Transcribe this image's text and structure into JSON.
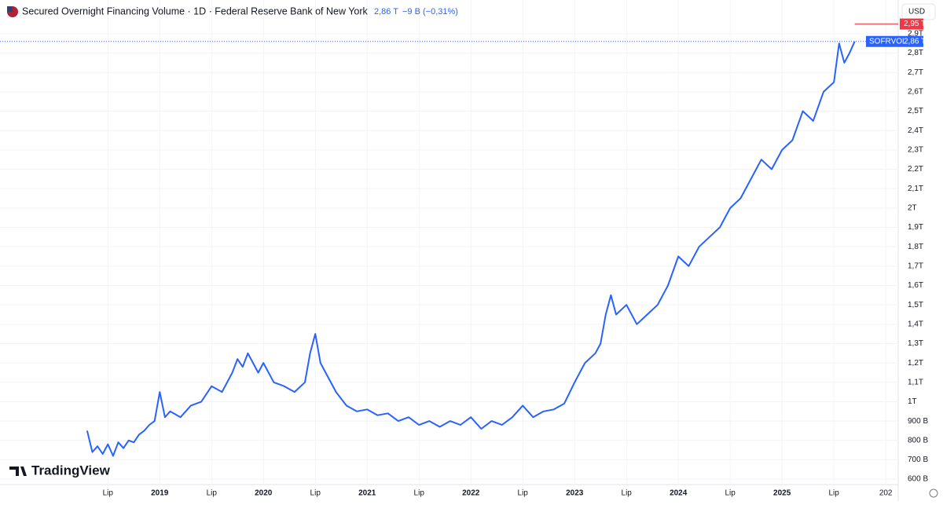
{
  "chart_data": {
    "type": "line",
    "title": "Secured Overnight Financing Volume · 1D · Federal Reserve Bank of New York",
    "last": {
      "value": 2860,
      "label": "2,86 T"
    },
    "change": "−9 B (−0,31%)",
    "high": {
      "value": 2950,
      "label": "2,95 T"
    },
    "symbol": "SOFRVOL",
    "currency": "USD",
    "watermark": "TradingView",
    "grid": true,
    "xlim": [
      2017.46,
      2026.12
    ],
    "ylim": [
      572,
      3074
    ],
    "xticks": [
      {
        "value": 2018.5,
        "label": "Lip"
      },
      2019,
      {
        "value": 2019.5,
        "label": "Lip"
      },
      2020,
      {
        "value": 2020.5,
        "label": "Lip"
      },
      2021,
      {
        "value": 2021.5,
        "label": "Lip"
      },
      2022,
      {
        "value": 2022.5,
        "label": "Lip"
      },
      2023,
      {
        "value": 2023.5,
        "label": "Lip"
      },
      2024,
      {
        "value": 2024.5,
        "label": "Lip"
      },
      2025,
      {
        "value": 2025.5,
        "label": "Lip"
      },
      {
        "value": 2026,
        "label": "202"
      }
    ],
    "yticks": [
      {
        "value": 600,
        "label": "600 B"
      },
      {
        "value": 700,
        "label": "700 B"
      },
      {
        "value": 800,
        "label": "800 B"
      },
      {
        "value": 900,
        "label": "900 B"
      },
      {
        "value": 1000,
        "label": "1T"
      },
      {
        "value": 1100,
        "label": "1,1T"
      },
      {
        "value": 1200,
        "label": "1,2T"
      },
      {
        "value": 1300,
        "label": "1,3T"
      },
      {
        "value": 1400,
        "label": "1,4T"
      },
      {
        "value": 1500,
        "label": "1,5T"
      },
      {
        "value": 1600,
        "label": "1,6T"
      },
      {
        "value": 1700,
        "label": "1,7T"
      },
      {
        "value": 1800,
        "label": "1,8T"
      },
      {
        "value": 1900,
        "label": "1,9T"
      },
      {
        "value": 2000,
        "label": "2T"
      },
      {
        "value": 2100,
        "label": "2,1T"
      },
      {
        "value": 2200,
        "label": "2,2T"
      },
      {
        "value": 2300,
        "label": "2,3T"
      },
      {
        "value": 2400,
        "label": "2,4T"
      },
      {
        "value": 2500,
        "label": "2,5T"
      },
      {
        "value": 2600,
        "label": "2,6T"
      },
      {
        "value": 2700,
        "label": "2,7T"
      },
      {
        "value": 2800,
        "label": "2,8T"
      },
      {
        "value": 2900,
        "label": "2,9T"
      }
    ],
    "series": [
      {
        "name": "SOFRVOL",
        "color": "#2962ff",
        "x": [
          2018.3,
          2018.35,
          2018.4,
          2018.45,
          2018.5,
          2018.55,
          2018.6,
          2018.65,
          2018.7,
          2018.75,
          2018.8,
          2018.85,
          2018.9,
          2018.95,
          2019.0,
          2019.05,
          2019.1,
          2019.2,
          2019.3,
          2019.4,
          2019.5,
          2019.6,
          2019.7,
          2019.75,
          2019.8,
          2019.85,
          2019.9,
          2019.95,
          2020.0,
          2020.1,
          2020.2,
          2020.3,
          2020.4,
          2020.45,
          2020.5,
          2020.55,
          2020.6,
          2020.7,
          2020.8,
          2020.9,
          2021.0,
          2021.1,
          2021.2,
          2021.3,
          2021.4,
          2021.5,
          2021.6,
          2021.7,
          2021.8,
          2021.9,
          2022.0,
          2022.1,
          2022.2,
          2022.3,
          2022.4,
          2022.5,
          2022.6,
          2022.7,
          2022.8,
          2022.9,
          2023.0,
          2023.1,
          2023.2,
          2023.25,
          2023.3,
          2023.35,
          2023.4,
          2023.5,
          2023.6,
          2023.7,
          2023.8,
          2023.9,
          2024.0,
          2024.1,
          2024.2,
          2024.3,
          2024.4,
          2024.5,
          2024.6,
          2024.7,
          2024.8,
          2024.9,
          2025.0,
          2025.1,
          2025.2,
          2025.3,
          2025.4,
          2025.5,
          2025.55,
          2025.6,
          2025.65,
          2025.7
        ],
        "values": [
          850,
          740,
          770,
          730,
          780,
          720,
          790,
          760,
          800,
          790,
          830,
          850,
          880,
          900,
          1050,
          920,
          950,
          920,
          980,
          1000,
          1080,
          1050,
          1150,
          1220,
          1180,
          1250,
          1200,
          1150,
          1200,
          1100,
          1080,
          1050,
          1100,
          1250,
          1350,
          1200,
          1150,
          1050,
          980,
          950,
          960,
          930,
          940,
          900,
          920,
          880,
          900,
          870,
          900,
          880,
          920,
          860,
          900,
          880,
          920,
          980,
          920,
          950,
          960,
          990,
          1100,
          1200,
          1250,
          1300,
          1450,
          1550,
          1450,
          1500,
          1400,
          1450,
          1500,
          1600,
          1750,
          1700,
          1800,
          1850,
          1900,
          2000,
          2050,
          2150,
          2250,
          2200,
          2300,
          2350,
          2500,
          2450,
          2600,
          2650,
          2850,
          2750,
          2800,
          2860
        ]
      }
    ]
  }
}
